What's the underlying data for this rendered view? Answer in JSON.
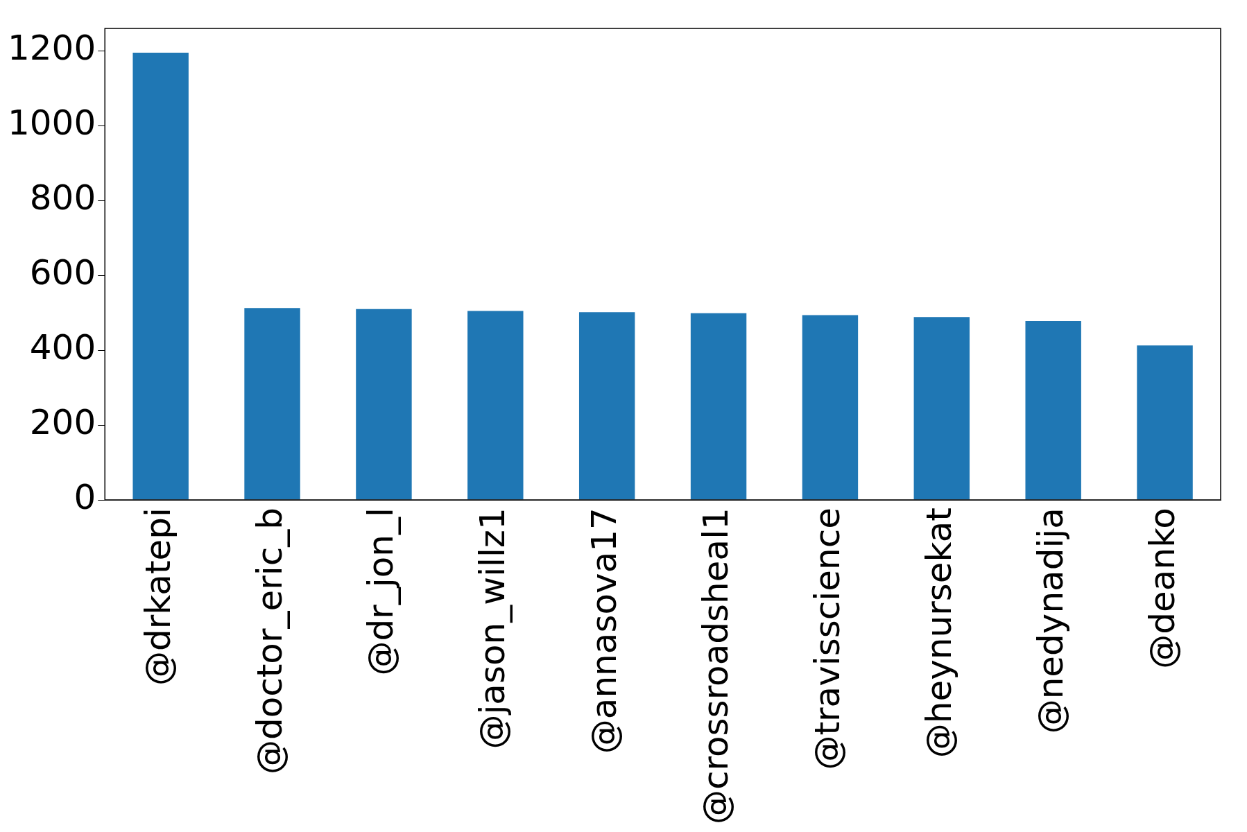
{
  "chart_data": {
    "type": "bar",
    "categories": [
      "@drkatepi",
      "@doctor_eric_b",
      "@dr_jon_l",
      "@jason_willz1",
      "@annasova17",
      "@crossroadsheal1",
      "@travisscience",
      "@heynursekat",
      "@nedynadija",
      "@deanko"
    ],
    "values": [
      1195,
      513,
      510,
      505,
      502,
      499,
      494,
      489,
      478,
      413
    ],
    "color": "#1f77b4",
    "ylim": [
      0,
      1260
    ],
    "yticks": [
      0,
      200,
      400,
      600,
      800,
      1000,
      1200
    ]
  }
}
